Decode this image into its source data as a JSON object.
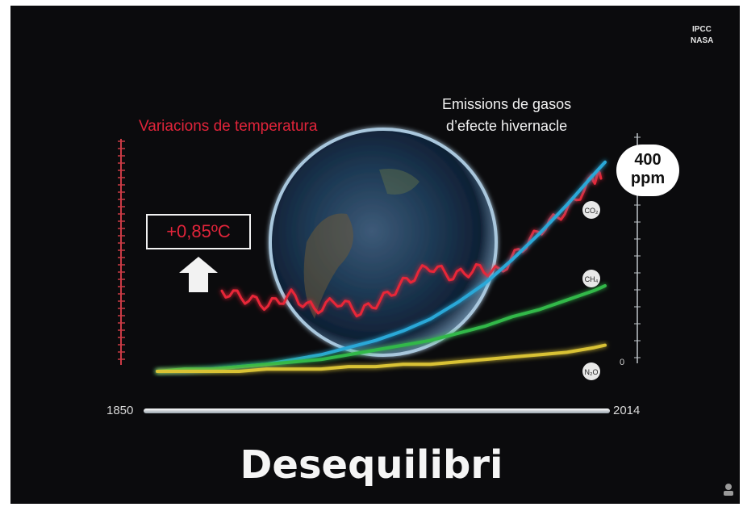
{
  "source": {
    "line1": "IPCC",
    "line2": "NASA"
  },
  "temperature": {
    "title": "Variacions de temperatura",
    "anomaly_label": "+0,85ºC"
  },
  "emissions": {
    "title_line1": "Emissions de gasos",
    "title_line2": "d’efecte hivernacle",
    "badge_line1": "400",
    "badge_line2": "ppm"
  },
  "timeline": {
    "start": "1850",
    "end": "2014"
  },
  "headline": "Desequilibri",
  "right_axis": {
    "zero_label": "0"
  },
  "gas_labels": [
    "CO₂",
    "CH₄",
    "N₂O"
  ],
  "colors": {
    "temperature": "#e82838",
    "co2": "#29a8d8",
    "ch4": "#33b84a",
    "n2o": "#d9c234",
    "globe": "#1a3350"
  },
  "chart_data": {
    "type": "line",
    "x": [
      1850,
      1860,
      1870,
      1880,
      1890,
      1900,
      1910,
      1920,
      1930,
      1940,
      1950,
      1960,
      1970,
      1980,
      1990,
      2000,
      2010,
      2014
    ],
    "series": [
      {
        "name": "",
        "values": [
          0.05,
          0.0,
          -0.05,
          0.02,
          -0.08,
          -0.02,
          -0.1,
          0.0,
          0.12,
          0.22,
          0.15,
          0.2,
          0.18,
          0.35,
          0.5,
          0.62,
          0.82,
          0.85
        ]
      },
      {
        "name": "CO₂",
        "values": [
          0.0,
          0.0,
          0.01,
          0.02,
          0.03,
          0.05,
          0.07,
          0.1,
          0.13,
          0.17,
          0.22,
          0.29,
          0.37,
          0.47,
          0.58,
          0.7,
          0.83,
          0.88
        ]
      },
      {
        "name": "CH₄",
        "values": [
          0.0,
          0.01,
          0.01,
          0.02,
          0.03,
          0.04,
          0.05,
          0.07,
          0.09,
          0.11,
          0.13,
          0.16,
          0.19,
          0.23,
          0.26,
          0.3,
          0.34,
          0.36
        ]
      },
      {
        "name": "N₂O",
        "values": [
          0.0,
          0.0,
          0.0,
          0.0,
          0.01,
          0.01,
          0.01,
          0.02,
          0.02,
          0.03,
          0.03,
          0.04,
          0.05,
          0.06,
          0.07,
          0.08,
          0.1,
          0.11
        ]
      }
    ],
    "xlim": [
      1850,
      2014
    ],
    "ylim": [
      -0.2,
      1.0
    ],
    "grid": false
  }
}
